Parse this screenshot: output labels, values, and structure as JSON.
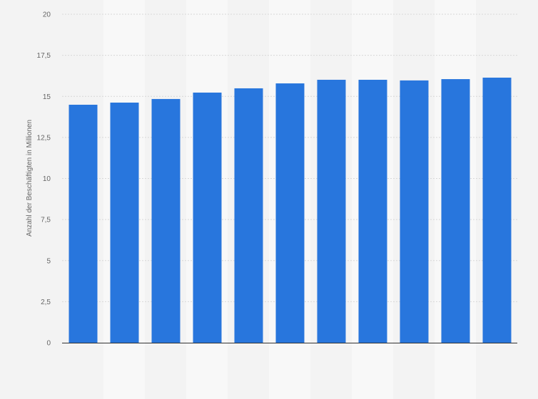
{
  "chart_data": {
    "type": "bar",
    "title": "",
    "xlabel": "",
    "ylabel": "Anzahl der Beschäftigten in Millionen",
    "ylim": [
      0,
      20
    ],
    "yticks": [
      0,
      2.5,
      5,
      7.5,
      10,
      12.5,
      15,
      17.5,
      20
    ],
    "ytick_labels": [
      "0",
      "2,5",
      "5",
      "7,5",
      "10",
      "12,5",
      "15",
      "17,5",
      "20"
    ],
    "values": [
      14.49,
      14.62,
      14.84,
      15.23,
      15.49,
      15.79,
      16.01,
      16.01,
      15.97,
      16.05,
      16.14
    ],
    "grid": true,
    "colors": {
      "bar": "#2876dd",
      "background": "#f3f3f3",
      "band": "#f8f8f8",
      "grid": "#d8d8d8",
      "axis": "#333333"
    }
  }
}
